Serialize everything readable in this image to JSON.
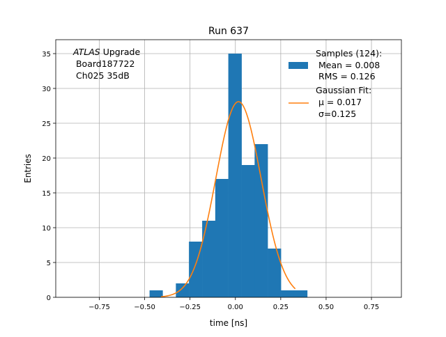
{
  "chart_data": {
    "type": "bar",
    "title": "Run 637",
    "xlabel": "time [ns]",
    "ylabel": "Entries",
    "xlim": [
      -0.99,
      0.915
    ],
    "ylim": [
      0,
      37
    ],
    "grid": true,
    "xticks": [
      -0.75,
      -0.5,
      -0.25,
      0,
      0.25,
      0.5,
      0.75
    ],
    "xtick_labels": [
      "−0.75",
      "−0.50",
      "−0.25",
      "0.00",
      "0.25",
      "0.50",
      "0.75"
    ],
    "yticks": [
      0,
      5,
      10,
      15,
      20,
      25,
      30,
      35
    ],
    "ytick_labels": [
      "0",
      "5",
      "10",
      "15",
      "20",
      "25",
      "30",
      "35"
    ],
    "bin_edges": [
      -0.473,
      -0.401,
      -0.328,
      -0.256,
      -0.183,
      -0.111,
      -0.039,
      0.034,
      0.106,
      0.178,
      0.251,
      0.323,
      0.396
    ],
    "counts": [
      1,
      0,
      2,
      8,
      11,
      17,
      35,
      19,
      22,
      7,
      1,
      1
    ],
    "fit": {
      "mu": 0.017,
      "sigma": 0.125,
      "amplitude": 28.1,
      "range": [
        -0.41,
        0.33
      ]
    },
    "colors": {
      "bar": "#1f77b4",
      "fit": "#ff7f0e",
      "grid": "#b0b0b0"
    },
    "annotation": {
      "italic": "ATLAS",
      "line1_rest": " Upgrade",
      "line2": " Board187722",
      "line3": " Ch025 35dB"
    },
    "legend": {
      "placement": "top-right",
      "hist_lines": [
        "Samples (124):",
        " Mean = 0.008",
        " RMS = 0.126"
      ],
      "fit_lines": [
        "Gaussian Fit:",
        " μ = 0.017",
        " σ=0.125"
      ]
    }
  }
}
